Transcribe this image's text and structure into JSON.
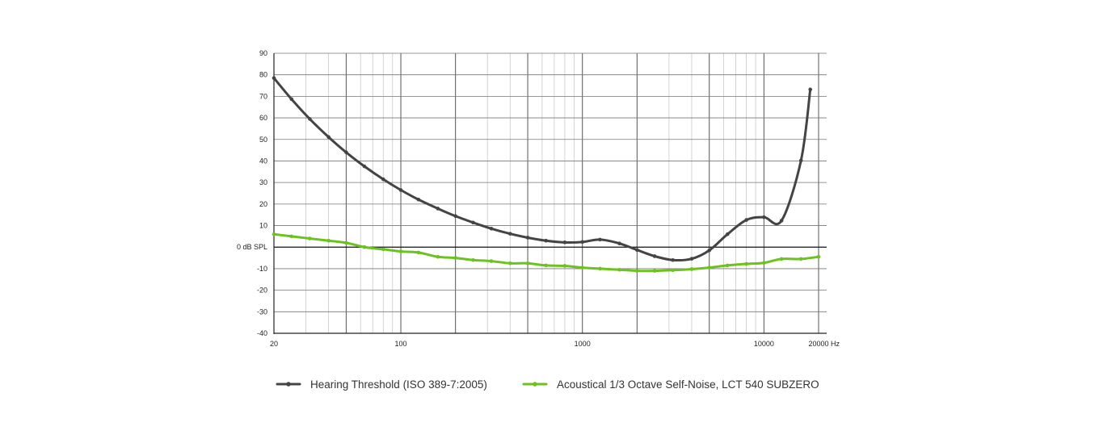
{
  "chart_data": {
    "type": "line",
    "x_scale": "log",
    "xlim": [
      20,
      20000
    ],
    "ylim": [
      -40,
      90
    ],
    "x_ticks": [
      {
        "value": 20,
        "label": "20"
      },
      {
        "value": 100,
        "label": "100"
      },
      {
        "value": 1000,
        "label": "1000"
      },
      {
        "value": 10000,
        "label": "10000"
      },
      {
        "value": 20000,
        "label": "20000"
      }
    ],
    "x_unit": "Hz",
    "y_ticks": [
      {
        "value": 90,
        "label": "90"
      },
      {
        "value": 80,
        "label": "80"
      },
      {
        "value": 70,
        "label": "70"
      },
      {
        "value": 60,
        "label": "60"
      },
      {
        "value": 50,
        "label": "50"
      },
      {
        "value": 40,
        "label": "40"
      },
      {
        "value": 30,
        "label": "30"
      },
      {
        "value": 20,
        "label": "20"
      },
      {
        "value": 10,
        "label": "10"
      },
      {
        "value": 0,
        "label": "0 dB SPL"
      },
      {
        "value": -10,
        "label": "-10"
      },
      {
        "value": -20,
        "label": "-20"
      },
      {
        "value": -30,
        "label": "-30"
      },
      {
        "value": -40,
        "label": "-40"
      }
    ],
    "grid": true,
    "legend_position": "bottom",
    "series": [
      {
        "name": "Hearing Threshold (ISO 389-7:2005)",
        "color": "#444444",
        "x": [
          20,
          25,
          31.5,
          40,
          50,
          63,
          80,
          100,
          125,
          160,
          200,
          250,
          315,
          400,
          500,
          630,
          800,
          1000,
          1250,
          1600,
          2000,
          2500,
          3150,
          4000,
          5000,
          6300,
          8000,
          10000,
          12500,
          16000,
          18000
        ],
        "y": [
          78.5,
          68.7,
          59.5,
          51.1,
          44.0,
          37.5,
          31.5,
          26.5,
          22.1,
          17.9,
          14.4,
          11.4,
          8.6,
          6.2,
          4.4,
          3.0,
          2.2,
          2.4,
          3.5,
          1.7,
          -1.3,
          -4.2,
          -6.0,
          -5.4,
          -1.5,
          6.0,
          12.6,
          13.9,
          12.3,
          40.2,
          73.2
        ]
      },
      {
        "name": "Acoustical 1/3 Octave Self-Noise, LCT 540 SUBZERO",
        "color": "#6cc21e",
        "x": [
          20,
          25,
          31.5,
          40,
          50,
          63,
          80,
          100,
          125,
          160,
          200,
          250,
          315,
          400,
          500,
          630,
          800,
          1000,
          1250,
          1600,
          2000,
          2500,
          3150,
          4000,
          5000,
          6300,
          8000,
          10000,
          12500,
          16000,
          20000
        ],
        "y": [
          6,
          5,
          4,
          3,
          2,
          0,
          -1,
          -2,
          -2.5,
          -4.5,
          -5,
          -6,
          -6.5,
          -7.5,
          -7.5,
          -8.5,
          -8.7,
          -9.5,
          -10,
          -10.5,
          -11,
          -11,
          -10.7,
          -10.2,
          -9.5,
          -8.5,
          -7.8,
          -7.3,
          -5.5,
          -5.5,
          -4.5
        ]
      }
    ]
  }
}
